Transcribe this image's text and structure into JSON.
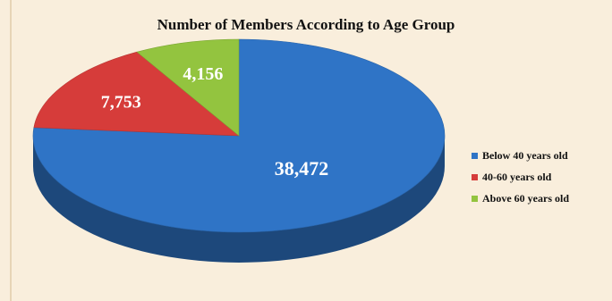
{
  "chart_data": {
    "type": "pie",
    "title": "Number of Members According to Age Group",
    "slices": [
      {
        "label": "Below 40 years old",
        "value": 38472,
        "display": "38,472",
        "color": "#2f74c6"
      },
      {
        "label": "40-60 years old",
        "value": 7753,
        "display": "7,753",
        "color": "#d63c3a"
      },
      {
        "label": "Above 60 years old",
        "value": 4156,
        "display": "4,156",
        "color": "#93c43f"
      }
    ],
    "legend_position": "right",
    "three_d": true,
    "background": "#f9eedc"
  }
}
